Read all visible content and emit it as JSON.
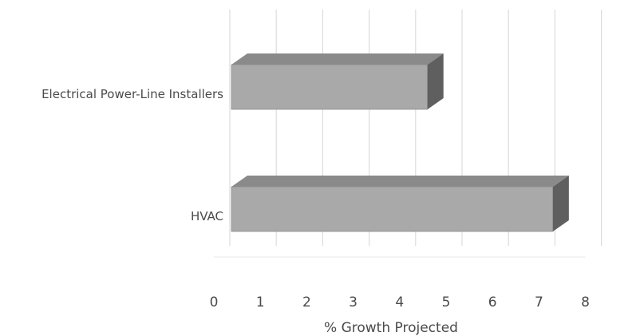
{
  "chart_data": {
    "type": "bar",
    "orientation": "horizontal",
    "style": "3d",
    "categories": [
      "Electrical Power-Line Installers",
      "HVAC"
    ],
    "values": [
      4.6,
      7.3
    ],
    "xlabel": "% Growth Projected",
    "ylabel": "",
    "title": "",
    "xlim": [
      0,
      8
    ],
    "xticks": [
      "0",
      "1",
      "2",
      "3",
      "4",
      "5",
      "6",
      "7",
      "8"
    ],
    "grid": true,
    "legend": "none",
    "colors": {
      "bar_front": "#a9a9a9",
      "bar_top": "#8a8a8a",
      "bar_side": "#5f5f5f",
      "grid": "#dcdcdc",
      "text": "#4a4a4a"
    }
  }
}
